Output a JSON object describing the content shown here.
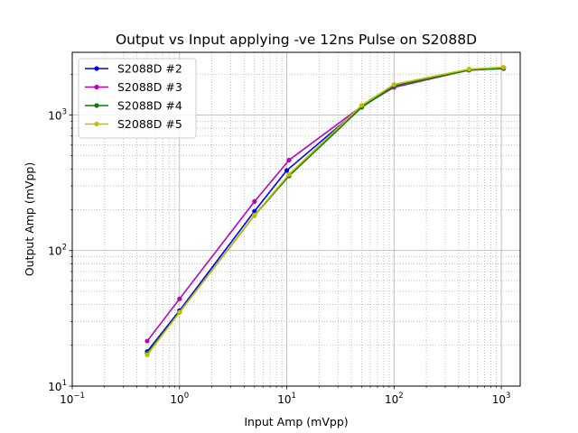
{
  "chart_data": {
    "type": "line",
    "title": "Output vs Input applying -ve 12ns Pulse on S2088D",
    "xlabel": "Input Amp (mVpp)",
    "ylabel": "Output Amp (mVpp)",
    "xscale": "log",
    "yscale": "log",
    "xlim": [
      0.1,
      1500
    ],
    "ylim": [
      10,
      2900
    ],
    "grid": "major and minor",
    "legend_position": "top-left",
    "xticks": [
      {
        "value": 0.1,
        "base": "10",
        "exp": "−1"
      },
      {
        "value": 1,
        "base": "10",
        "exp": "0"
      },
      {
        "value": 10,
        "base": "10",
        "exp": "1"
      },
      {
        "value": 100,
        "base": "10",
        "exp": "2"
      },
      {
        "value": 1000,
        "base": "10",
        "exp": "3"
      }
    ],
    "yticks": [
      {
        "value": 10,
        "base": "10",
        "exp": "1"
      },
      {
        "value": 100,
        "base": "10",
        "exp": "2"
      },
      {
        "value": 1000,
        "base": "10",
        "exp": "3"
      }
    ],
    "series": [
      {
        "name": "S2088D #2",
        "color": "#0000ff",
        "x": [
          0.5,
          1.0,
          5.0,
          10.0,
          50,
          100,
          500,
          1050
        ],
        "y": [
          18,
          36,
          195,
          390,
          1150,
          1620,
          2150,
          2230
        ]
      },
      {
        "name": "S2088D #3",
        "color": "#bf00bf",
        "x": [
          0.5,
          1.0,
          5.0,
          10.5,
          50,
          100,
          500,
          1050
        ],
        "y": [
          21.5,
          44,
          230,
          465,
          1160,
          1600,
          2150,
          2200
        ]
      },
      {
        "name": "S2088D #4",
        "color": "#008000",
        "x": [
          0.5,
          1.0,
          5.0,
          10.5,
          50,
          100,
          500,
          1050
        ],
        "y": [
          17.5,
          35,
          182,
          355,
          1140,
          1640,
          2140,
          2210
        ]
      },
      {
        "name": "S2088D #5",
        "color": "#bfbf00",
        "x": [
          0.5,
          1.0,
          5.0,
          10.5,
          50,
          100,
          500,
          1050
        ],
        "y": [
          17,
          35,
          183,
          365,
          1180,
          1680,
          2180,
          2250
        ]
      }
    ]
  }
}
